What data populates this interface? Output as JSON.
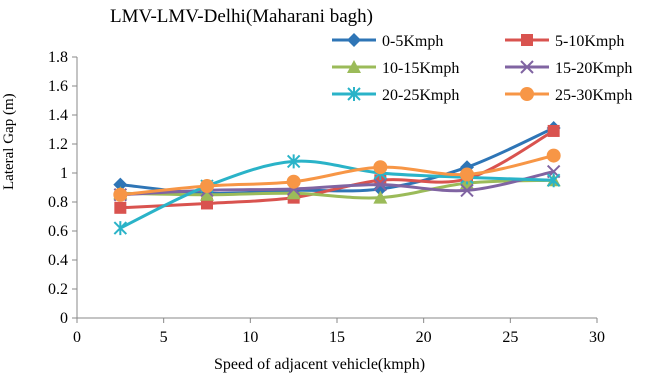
{
  "chart_data": {
    "type": "line",
    "title": "LMV-LMV-Delhi(Maharani bagh)",
    "xlabel": "Speed of adjacent vehicle(kmph)",
    "ylabel": "Lateral Gap (m)",
    "xlim": [
      0,
      30
    ],
    "ylim": [
      0,
      1.8
    ],
    "xticks": [
      0,
      5,
      10,
      15,
      20,
      25,
      30
    ],
    "yticks": [
      0,
      0.2,
      0.4,
      0.6,
      0.8,
      1,
      1.2,
      1.4,
      1.6,
      1.8
    ],
    "grid": false,
    "legend_position": "top-right",
    "x": [
      2.5,
      7.5,
      12.5,
      17.5,
      22.5,
      27.5
    ],
    "series": [
      {
        "name": "0-5Kmph",
        "color": "#2E75B6",
        "marker": "diamond",
        "values": [
          0.92,
          0.86,
          0.88,
          0.89,
          1.04,
          1.31
        ]
      },
      {
        "name": "5-10Kmph",
        "color": "#D9534F",
        "marker": "square",
        "values": [
          0.76,
          0.79,
          0.83,
          0.95,
          0.96,
          1.29
        ]
      },
      {
        "name": "10-15Kmph",
        "color": "#9BBB59",
        "marker": "triangle",
        "values": [
          0.86,
          0.85,
          0.86,
          0.83,
          0.93,
          0.95
        ]
      },
      {
        "name": "15-20Kmph",
        "color": "#8064A2",
        "marker": "x",
        "values": [
          0.85,
          0.88,
          0.89,
          0.92,
          0.88,
          1.01
        ]
      },
      {
        "name": "20-25Kmph",
        "color": "#2AB3C8",
        "marker": "star",
        "values": [
          0.62,
          0.91,
          1.08,
          1.0,
          0.97,
          0.95
        ]
      },
      {
        "name": "25-30Kmph",
        "color": "#F79646",
        "marker": "circle",
        "values": [
          0.85,
          0.91,
          0.94,
          1.04,
          0.99,
          1.12
        ]
      }
    ]
  }
}
